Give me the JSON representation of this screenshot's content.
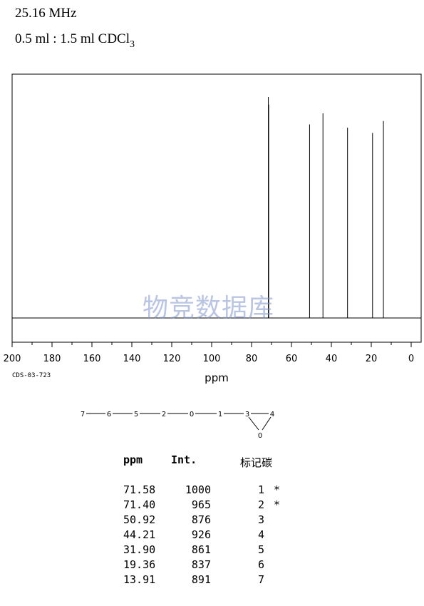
{
  "header": {
    "frequency": "25.16 MHz",
    "solvent_prefix": "0.5 ml : 1.5 ml CDCl",
    "solvent_subscript": "3"
  },
  "spectrum_code": "CDS-03-723",
  "watermark": "物竞数据库",
  "chart_data": {
    "type": "line",
    "xlabel": "ppm",
    "xlim": [
      200,
      -5
    ],
    "x_ticks": [
      200,
      180,
      160,
      140,
      120,
      100,
      80,
      60,
      40,
      20,
      0
    ],
    "peaks": [
      {
        "ppm": 71.58,
        "intensity": 1000
      },
      {
        "ppm": 71.4,
        "intensity": 965
      },
      {
        "ppm": 50.92,
        "intensity": 876
      },
      {
        "ppm": 44.21,
        "intensity": 926
      },
      {
        "ppm": 31.9,
        "intensity": 861
      },
      {
        "ppm": 19.36,
        "intensity": 837
      },
      {
        "ppm": 13.91,
        "intensity": 891
      }
    ]
  },
  "structure": {
    "chain": [
      "7",
      "6",
      "5",
      "2",
      "0",
      "1",
      "3",
      "4"
    ],
    "ring_oxygen": "0"
  },
  "table": {
    "headers": {
      "ppm": "ppm",
      "int": "Int.",
      "carbon": "标记碳"
    },
    "rows": [
      {
        "ppm": "71.58",
        "int": "1000",
        "carbon": "1",
        "mark": "*"
      },
      {
        "ppm": "71.40",
        "int": "965",
        "carbon": "2",
        "mark": "*"
      },
      {
        "ppm": "50.92",
        "int": "876",
        "carbon": "3",
        "mark": ""
      },
      {
        "ppm": "44.21",
        "int": "926",
        "carbon": "4",
        "mark": ""
      },
      {
        "ppm": "31.90",
        "int": "861",
        "carbon": "5",
        "mark": ""
      },
      {
        "ppm": "19.36",
        "int": "837",
        "carbon": "6",
        "mark": ""
      },
      {
        "ppm": "13.91",
        "int": "891",
        "carbon": "7",
        "mark": ""
      }
    ]
  }
}
